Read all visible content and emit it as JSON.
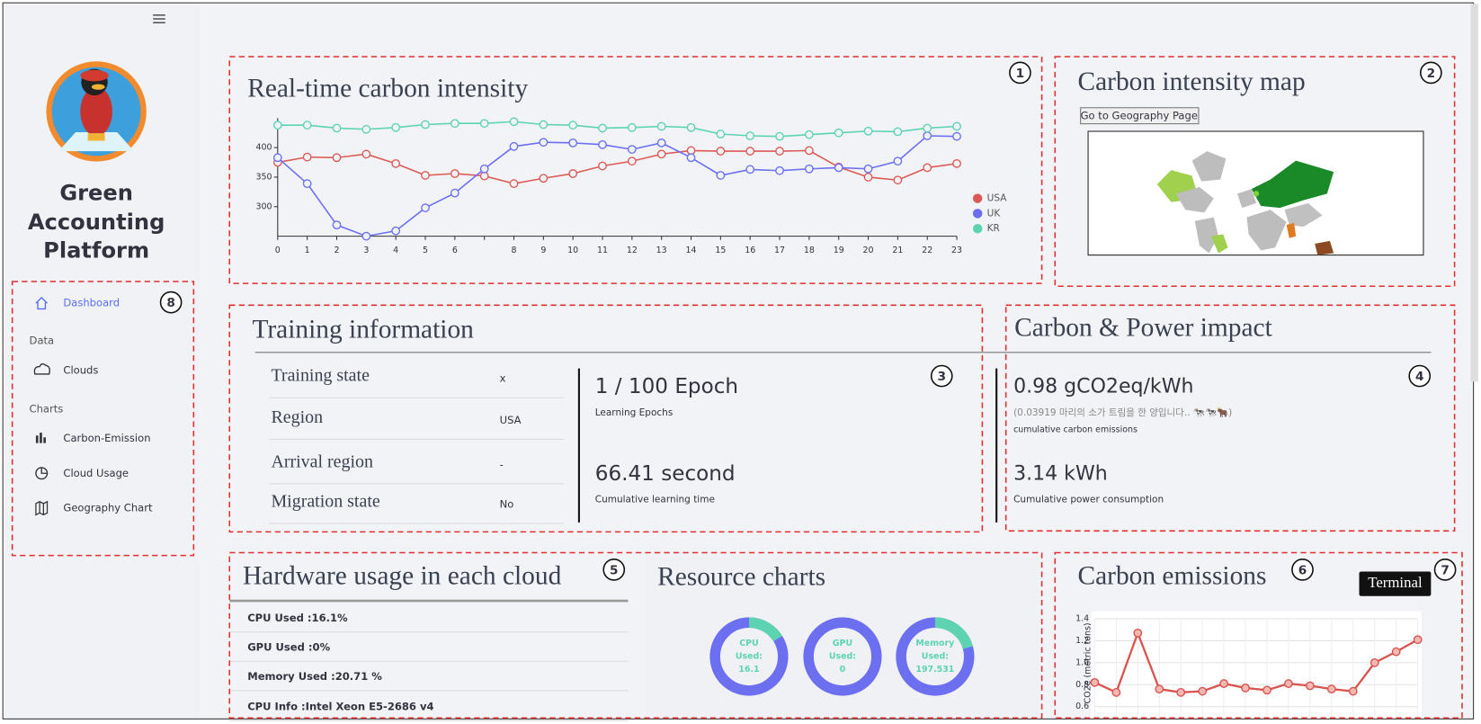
{
  "sidebar": {
    "title_lines": [
      "Green",
      "Accounting",
      "Platform"
    ],
    "nav": {
      "dashboard": "Dashboard",
      "data_header": "Data",
      "clouds": "Clouds",
      "charts_header": "Charts",
      "carbon_emission": "Carbon-Emission",
      "cloud_usage": "Cloud Usage",
      "geography_chart": "Geography Chart"
    }
  },
  "annotations": [
    "1",
    "2",
    "3",
    "4",
    "5",
    "6",
    "7",
    "8"
  ],
  "intensity_chart": {
    "type": "line",
    "title": "Real-time carbon intensity",
    "categories": [
      0,
      1,
      2,
      3,
      4,
      5,
      6,
      null,
      8,
      9,
      10,
      11,
      12,
      13,
      14,
      15,
      16,
      17,
      18,
      19,
      20,
      21,
      22,
      23
    ],
    "ylim": [
      250,
      450
    ],
    "yticks": [
      300,
      350,
      400
    ],
    "legend": "right",
    "series": [
      {
        "name": "USA",
        "color": "#dc5a55",
        "values": [
          375,
          384,
          383,
          389,
          373,
          353,
          356,
          352,
          339,
          348,
          356,
          369,
          377,
          389,
          395,
          394,
          394,
          394,
          395,
          367,
          350,
          345,
          366,
          373
        ]
      },
      {
        "name": "UK",
        "color": "#6b6ff0",
        "values": [
          383,
          339,
          269,
          250,
          259,
          298,
          323,
          364,
          402,
          409,
          408,
          405,
          397,
          408,
          383,
          353,
          363,
          361,
          364,
          366,
          364,
          377,
          420,
          419
        ]
      },
      {
        "name": "KR",
        "color": "#5dd3b1",
        "values": [
          438,
          438,
          433,
          431,
          434,
          439,
          441,
          441,
          444,
          439,
          438,
          433,
          434,
          436,
          434,
          423,
          420,
          419,
          422,
          425,
          428,
          427,
          433,
          436
        ]
      }
    ]
  },
  "map": {
    "title": "Carbon intensity map",
    "button": "Go to Geography Page"
  },
  "training": {
    "title": "Training information",
    "rows": [
      [
        "Training state",
        "x"
      ],
      [
        "Region",
        "USA"
      ],
      [
        "Arrival region",
        "-"
      ],
      [
        "Migration state",
        "No"
      ]
    ],
    "epoch": "1 / 100 Epoch",
    "epoch_caption": "Learning Epochs",
    "time": "66.41 second",
    "time_caption": "Cumulative learning time"
  },
  "impact": {
    "title": "Carbon & Power impact",
    "carbon": "0.98 gCO2eq/kWh",
    "cow_note": "(0.03919 마리의 소가 트림을 한 양입니다.. 🐄🐄🐂)",
    "carbon_caption": "cumulative carbon emissions",
    "power": "3.14 kWh",
    "power_caption": "Cumulative power consumption"
  },
  "hardware": {
    "title": "Hardware usage in each cloud",
    "items": [
      {
        "label": "CPU Used :",
        "value": 16.1,
        "unit": "%"
      },
      {
        "label": "GPU Used :",
        "value": 0,
        "unit": "%"
      },
      {
        "label": "Memory Used :",
        "value": 20.71,
        "unit": " %"
      },
      {
        "label": "CPU Info :",
        "text": "Intel Xeon E5-2686 v4"
      }
    ]
  },
  "resources": {
    "title": "Resource charts",
    "donuts": [
      {
        "lines": [
          "CPU",
          "Used:"
        ],
        "value": 16.1
      },
      {
        "lines": [
          "GPU",
          "Used:"
        ],
        "value": 0
      },
      {
        "lines": [
          "Memory",
          "Used:"
        ],
        "value": 197.531
      }
    ]
  },
  "emissions_chart": {
    "type": "line",
    "title": "Carbon emissions",
    "y_label": "CO2e (metric tons)",
    "color": "#d9534f",
    "values": [
      0.82,
      0.73,
      1.27,
      0.76,
      0.73,
      0.74,
      0.81,
      0.77,
      0.75,
      0.81,
      0.79,
      0.76,
      0.74,
      1.0,
      1.1,
      1.21
    ],
    "ylim": [
      0.6,
      1.4
    ],
    "yticks": [
      0.6,
      0.8,
      {
        "value": 1,
        "label": "1.0"
      },
      1.2,
      1.4
    ],
    "grid": true
  },
  "tooltip": "Terminal"
}
